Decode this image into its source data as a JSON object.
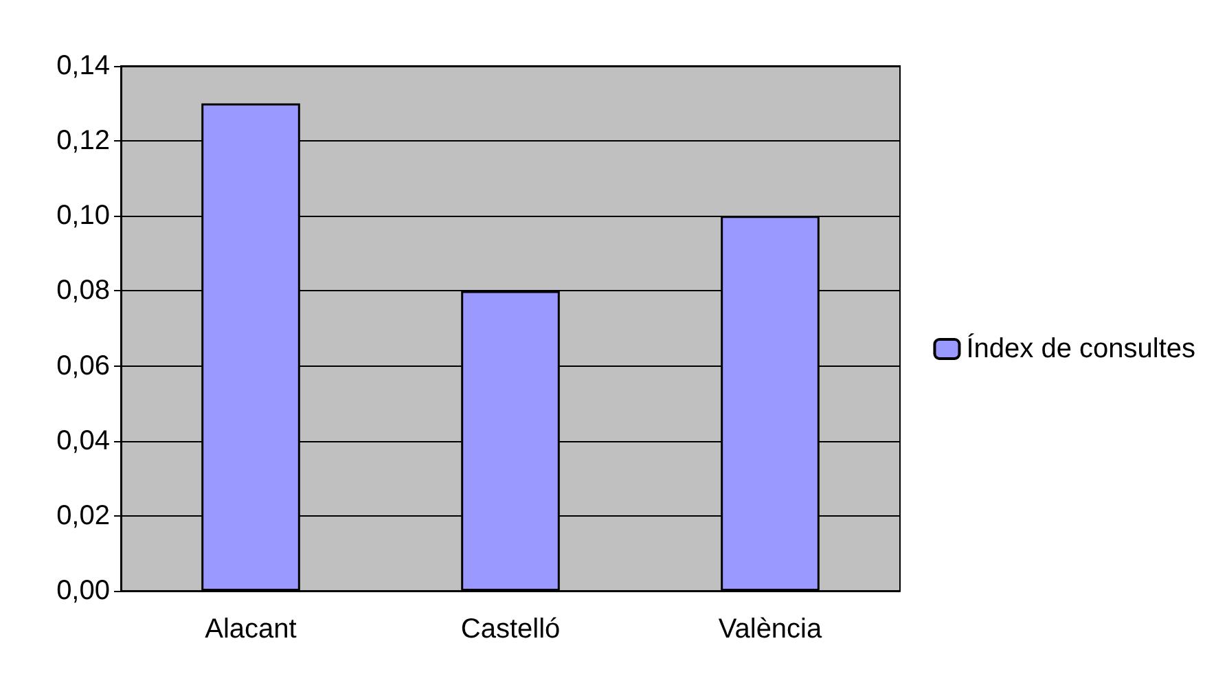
{
  "chart_data": {
    "type": "bar",
    "categories": [
      "Alacant",
      "Castelló",
      "València"
    ],
    "series": [
      {
        "name": "Índex de consultes",
        "color": "#9999ff",
        "values": [
          0.13,
          0.08,
          0.1
        ]
      }
    ],
    "ylim": [
      0,
      0.14
    ],
    "yticks": [
      {
        "value": 0,
        "label": "0,00"
      },
      {
        "value": 0.02,
        "label": "0,02"
      },
      {
        "value": 0.04,
        "label": "0,04"
      },
      {
        "value": 0.06,
        "label": "0,06"
      },
      {
        "value": 0.08,
        "label": "0,08"
      },
      {
        "value": 0.1,
        "label": "0,10"
      },
      {
        "value": 0.12,
        "label": "0,12"
      },
      {
        "value": 0.14,
        "label": "0,14"
      }
    ],
    "grid": "y",
    "legend": "right"
  }
}
